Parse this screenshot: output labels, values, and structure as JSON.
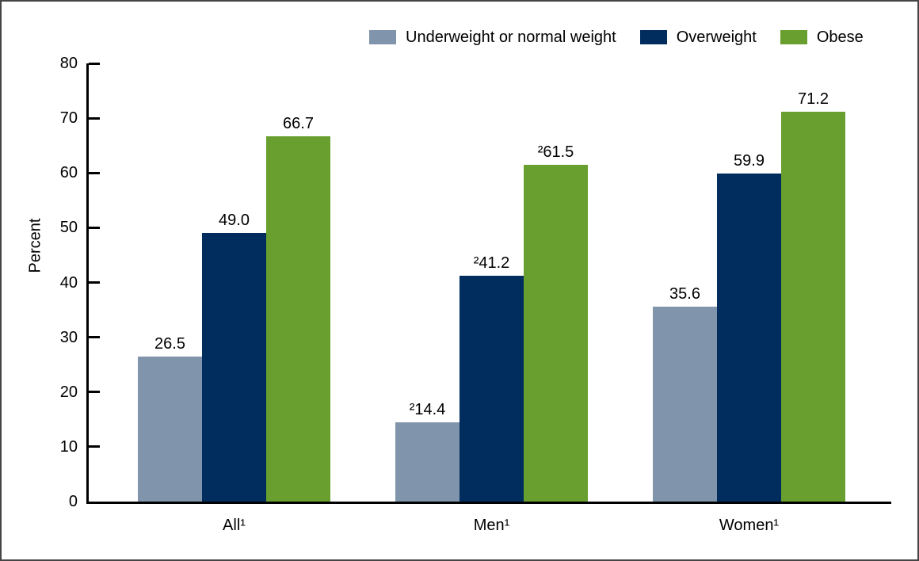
{
  "chart_data": {
    "type": "bar",
    "title": "",
    "ylabel": "Percent",
    "ylim": [
      0,
      80
    ],
    "yticks": [
      0,
      10,
      20,
      30,
      40,
      50,
      60,
      70,
      80
    ],
    "grid": false,
    "legend_position": "top-right",
    "categories": [
      "All¹",
      "Men¹",
      "Women¹"
    ],
    "series": [
      {
        "name": "Underweight or normal weight",
        "color": "#8094AB",
        "values": [
          26.5,
          14.4,
          35.6
        ],
        "value_labels": [
          "26.5",
          "²14.4",
          "35.6"
        ]
      },
      {
        "name": "Overweight",
        "color": "#002D5D",
        "values": [
          49.0,
          41.2,
          59.9
        ],
        "value_labels": [
          "49.0",
          "²41.2",
          "59.9"
        ]
      },
      {
        "name": "Obese",
        "color": "#699F2E",
        "values": [
          66.7,
          61.5,
          71.2
        ],
        "value_labels": [
          "66.7",
          "²61.5",
          "71.2"
        ]
      }
    ]
  }
}
